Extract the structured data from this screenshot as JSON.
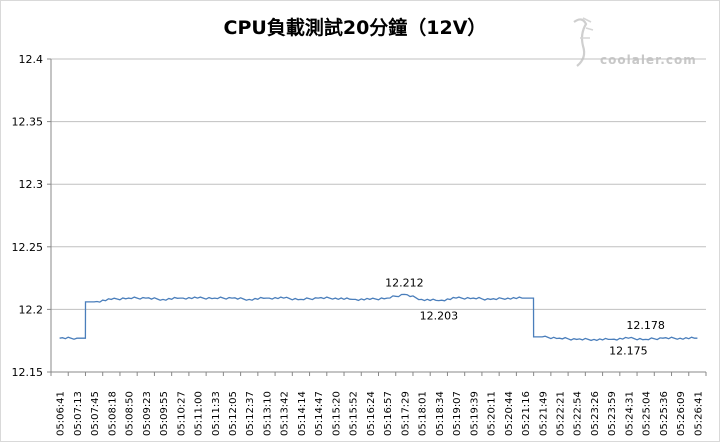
{
  "chart_data": {
    "type": "line",
    "title": "CPU負載測試20分鐘（12V）",
    "watermark": "coolaler.com",
    "xlabel": "",
    "ylabel": "",
    "ylim": [
      12.15,
      12.4
    ],
    "yticks": [
      "12.15",
      "12.2",
      "12.25",
      "12.3",
      "12.35",
      "12.4"
    ],
    "grid": "horizontal",
    "legend": "none",
    "series_color": "#4a7ebb",
    "categories": [
      "05:06:41",
      "05:07:13",
      "05:07:45",
      "05:08:18",
      "05:08:50",
      "05:09:23",
      "05:09:55",
      "05:10:27",
      "05:11:00",
      "05:11:33",
      "05:12:05",
      "05:12:37",
      "05:13:10",
      "05:13:42",
      "05:14:14",
      "05:14:47",
      "05:15:20",
      "05:15:52",
      "05:16:24",
      "05:16:57",
      "05:17:29",
      "05:18:01",
      "05:18:34",
      "05:19:07",
      "05:19:39",
      "05:20:11",
      "05:20:44",
      "05:21:16",
      "05:21:49",
      "05:22:21",
      "05:22:54",
      "05:23:26",
      "05:23:59",
      "05:24:31",
      "05:25:04",
      "05:25:36",
      "05:26:09",
      "05:26:41"
    ],
    "values": [
      12.177,
      12.177,
      12.206,
      12.208,
      12.209,
      12.209,
      12.208,
      12.209,
      12.209,
      12.209,
      12.209,
      12.208,
      12.209,
      12.209,
      12.208,
      12.209,
      12.209,
      12.208,
      12.208,
      12.209,
      12.212,
      12.208,
      12.207,
      12.209,
      12.209,
      12.208,
      12.209,
      12.209,
      12.178,
      12.177,
      12.176,
      12.176,
      12.176,
      12.177,
      12.176,
      12.177,
      12.177,
      12.177
    ],
    "annotations": [
      {
        "text": "12.212",
        "x": "05:17:29",
        "y": 12.212,
        "position": "above"
      },
      {
        "text": "12.203",
        "x": "05:18:34",
        "y": 12.203,
        "position": "below"
      },
      {
        "text": "12.178",
        "x": "05:25:04",
        "y": 12.178,
        "position": "above"
      },
      {
        "text": "12.175",
        "x": "05:24:31",
        "y": 12.175,
        "position": "below"
      }
    ]
  }
}
